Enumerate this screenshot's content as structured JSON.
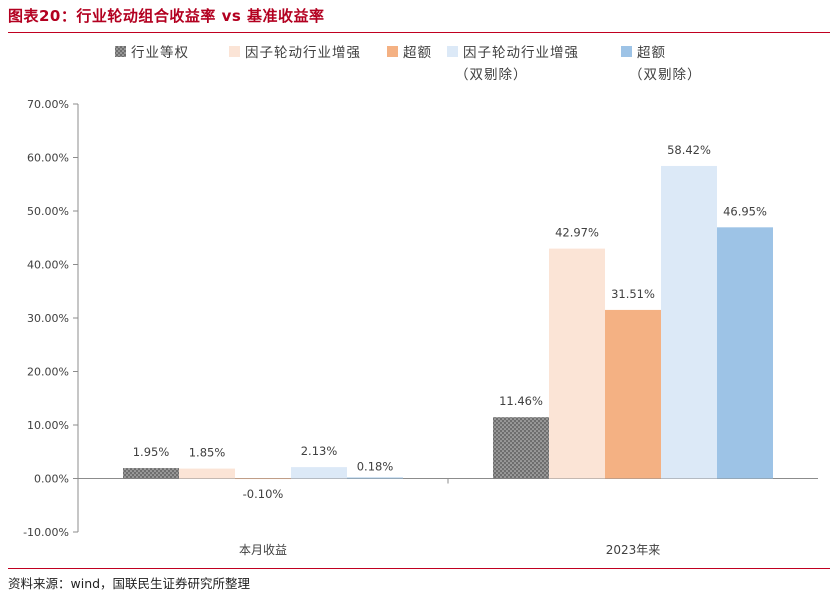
{
  "header": {
    "title": "图表20：行业轮动组合收益率 vs 基准收益率"
  },
  "footer": {
    "source": "资料来源：wind，国联民生证券研究所整理"
  },
  "chart_data": {
    "type": "bar",
    "categories": [
      "本月收益",
      "2023年来"
    ],
    "series": [
      {
        "name": "行业等权",
        "values": [
          1.95,
          11.46
        ],
        "labels": [
          "1.95%",
          "11.46%"
        ],
        "color": "#6e6e6e",
        "pattern": "dots"
      },
      {
        "name": "因子轮动行业增强",
        "values": [
          1.85,
          42.97
        ],
        "labels": [
          "1.85%",
          "42.97%"
        ],
        "color": "#fbe4d6"
      },
      {
        "name": "超额",
        "values": [
          -0.1,
          31.51
        ],
        "labels": [
          "-0.10%",
          "31.51%"
        ],
        "color": "#f4b183"
      },
      {
        "name": "因子轮动行业增强（双剔除）",
        "legend_lines": [
          "因子轮动行业增强",
          "（双剔除）"
        ],
        "values": [
          2.13,
          58.42
        ],
        "labels": [
          "2.13%",
          "58.42%"
        ],
        "color": "#dce9f7"
      },
      {
        "name": "超额（双剔除）",
        "legend_lines": [
          "超额",
          "（双剔除）"
        ],
        "values": [
          0.18,
          46.95
        ],
        "labels": [
          "0.18%",
          "46.95%"
        ],
        "color": "#9dc3e6"
      }
    ],
    "yticks": [
      "-10.00%",
      "0.00%",
      "10.00%",
      "20.00%",
      "30.00%",
      "40.00%",
      "50.00%",
      "60.00%",
      "70.00%"
    ],
    "ylim": [
      -10,
      70
    ],
    "ylabel": "",
    "xlabel": "",
    "legend_position": "top",
    "grid": false
  }
}
